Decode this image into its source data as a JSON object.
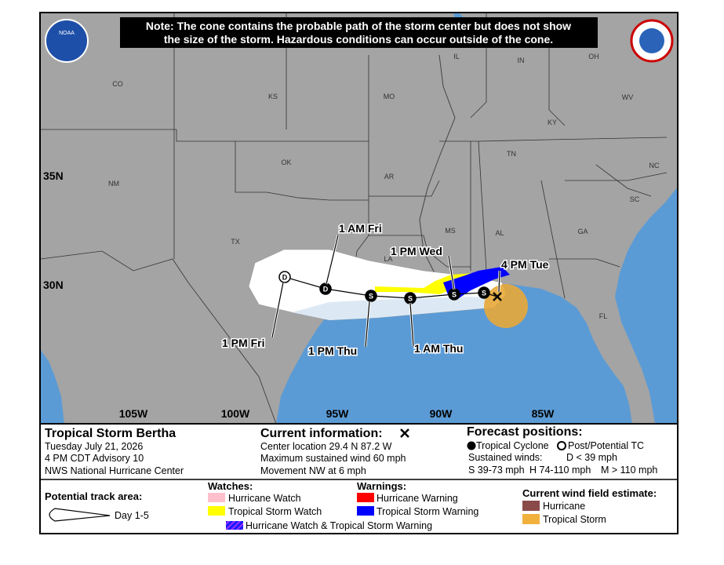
{
  "header": {
    "note": [
      "Note: The cone contains the probable path of the storm center but does not show",
      "the size of the storm. Hazardous conditions can occur outside of the cone."
    ],
    "logo": "NOAA"
  },
  "map": {
    "states": [
      "CO",
      "KS",
      "MO",
      "IL",
      "IN",
      "OH",
      "WV",
      "KY",
      "TN",
      "NC",
      "SC",
      "GA",
      "AL",
      "MS",
      "AR",
      "OK",
      "NM",
      "TX",
      "LA",
      "FL"
    ],
    "latitudes": [
      "35N",
      "30N"
    ],
    "longitudes": [
      "105W",
      "100W",
      "95W",
      "90W",
      "85W"
    ],
    "markers": [
      "S",
      "S",
      "S",
      "S",
      "D",
      "D"
    ],
    "times": [
      "4 PM Tue",
      "1 PM Wed",
      "1 AM Thu",
      "1 PM Thu",
      "1 AM Fri",
      "1 PM Fri"
    ]
  },
  "legend": {
    "storm": {
      "name": "Tropical Storm Bertha",
      "date": "Tuesday July 21, 2026",
      "advisory": "4 PM CDT Advisory 10",
      "center": "NWS National Hurricane Center"
    },
    "current": {
      "title": "Current information:",
      "location": "Center location 29.4 N 87.2 W",
      "wind": "Maximum sustained wind 60 mph",
      "movement": "Movement NW at 6 mph"
    },
    "forecast": {
      "title": "Forecast positions:",
      "tropical_cyclone": "Tropical Cyclone",
      "post_tc": "Post/Potential TC",
      "sustained": "Sustained winds:",
      "d": "D < 39 mph",
      "s": "S 39-73 mph",
      "h": "H 74-110 mph",
      "m": "M > 110 mph"
    },
    "track": {
      "title": "Potential track area:",
      "day": "Day 1-5"
    },
    "watches": {
      "title": "Watches:",
      "items": [
        "Hurricane Watch",
        "Tropical Storm Watch"
      ]
    },
    "warnings": {
      "title": "Warnings:",
      "items": [
        "Hurricane Warning",
        "Tropical Storm Warning"
      ]
    },
    "combo": "Hurricane Watch & Tropical Storm Warning",
    "wind_field": {
      "title": "Current wind field estimate:",
      "items": [
        "Hurricane",
        "Tropical Storm"
      ]
    }
  }
}
